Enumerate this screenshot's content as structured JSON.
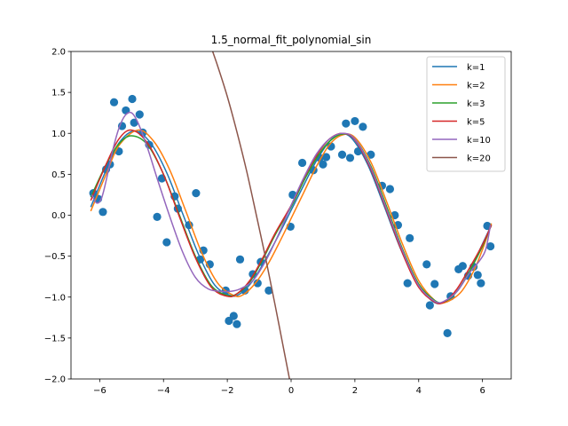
{
  "chart_data": {
    "type": "line",
    "title": "1.5_normal_fit_polynomial_sin",
    "xlabel": "",
    "ylabel": "",
    "xlim": [
      -6.9,
      6.9
    ],
    "ylim": [
      -2.0,
      2.0
    ],
    "x_ticks": [
      -6,
      -4,
      -2,
      0,
      2,
      4,
      6
    ],
    "x_tick_labels": [
      "−6",
      "−4",
      "−2",
      "0",
      "2",
      "4",
      "6"
    ],
    "y_ticks": [
      -2.0,
      -1.5,
      -1.0,
      -0.5,
      0.0,
      0.5,
      1.0,
      1.5,
      2.0
    ],
    "y_tick_labels": [
      "−2.0",
      "−1.5",
      "−1.0",
      "−0.5",
      "0.0",
      "0.5",
      "1.0",
      "1.5",
      "2.0"
    ],
    "grid": false,
    "legend_position": "top-right",
    "scatter": {
      "color": "#1f77b4",
      "points": [
        [
          -6.2,
          0.27
        ],
        [
          -6.05,
          0.2
        ],
        [
          -5.9,
          0.04
        ],
        [
          -5.8,
          0.56
        ],
        [
          -5.68,
          0.62
        ],
        [
          -5.55,
          1.38
        ],
        [
          -5.4,
          0.78
        ],
        [
          -5.3,
          1.09
        ],
        [
          -5.18,
          1.28
        ],
        [
          -4.98,
          1.42
        ],
        [
          -4.92,
          1.13
        ],
        [
          -4.75,
          1.23
        ],
        [
          -4.65,
          1.01
        ],
        [
          -4.45,
          0.86
        ],
        [
          -4.2,
          -0.02
        ],
        [
          -4.05,
          0.45
        ],
        [
          -3.9,
          -0.33
        ],
        [
          -3.65,
          0.23
        ],
        [
          -3.55,
          0.08
        ],
        [
          -3.2,
          -0.12
        ],
        [
          -2.98,
          0.27
        ],
        [
          -2.85,
          -0.54
        ],
        [
          -2.75,
          -0.43
        ],
        [
          -2.55,
          -0.6
        ],
        [
          -2.05,
          -0.92
        ],
        [
          -1.95,
          -1.29
        ],
        [
          -1.8,
          -1.23
        ],
        [
          -1.7,
          -1.33
        ],
        [
          -1.6,
          -0.54
        ],
        [
          -1.45,
          -0.92
        ],
        [
          -1.2,
          -0.72
        ],
        [
          -1.05,
          -0.83
        ],
        [
          -0.95,
          -0.57
        ],
        [
          -0.7,
          -0.92
        ],
        [
          -0.02,
          -0.14
        ],
        [
          0.05,
          0.25
        ],
        [
          0.35,
          0.64
        ],
        [
          0.7,
          0.55
        ],
        [
          0.9,
          0.7
        ],
        [
          1.0,
          0.62
        ],
        [
          1.1,
          0.71
        ],
        [
          1.25,
          0.84
        ],
        [
          1.6,
          0.74
        ],
        [
          1.72,
          1.12
        ],
        [
          1.85,
          0.7
        ],
        [
          2.0,
          1.15
        ],
        [
          2.1,
          0.78
        ],
        [
          2.25,
          1.08
        ],
        [
          2.5,
          0.74
        ],
        [
          2.85,
          0.36
        ],
        [
          3.1,
          0.32
        ],
        [
          3.25,
          0.0
        ],
        [
          3.35,
          -0.12
        ],
        [
          3.65,
          -0.83
        ],
        [
          3.72,
          -0.28
        ],
        [
          4.25,
          -0.6
        ],
        [
          4.35,
          -1.1
        ],
        [
          4.5,
          -0.84
        ],
        [
          4.9,
          -1.44
        ],
        [
          5.0,
          -0.99
        ],
        [
          5.25,
          -0.66
        ],
        [
          5.38,
          -0.62
        ],
        [
          5.55,
          -0.74
        ],
        [
          5.72,
          -0.63
        ],
        [
          5.85,
          -0.73
        ],
        [
          5.95,
          -0.83
        ],
        [
          6.15,
          -0.13
        ],
        [
          6.25,
          -0.38
        ]
      ]
    },
    "series": [
      {
        "name": "k=1",
        "color": "#1f77b4",
        "x": [
          -6.28,
          -5.8,
          -5.4,
          -4.9,
          -4.4,
          -3.9,
          -3.4,
          -2.9,
          -2.4,
          -1.9,
          -1.6,
          -1.2,
          -0.8,
          -0.4,
          0,
          0.4,
          0.8,
          1.2,
          1.55,
          1.9,
          2.4,
          2.9,
          3.4,
          3.9,
          4.4,
          4.75,
          5.2,
          5.6,
          6.0,
          6.28
        ],
        "y": [
          0.1,
          0.55,
          0.88,
          1.03,
          0.88,
          0.52,
          0.02,
          -0.48,
          -0.85,
          -0.98,
          -0.96,
          -0.8,
          -0.54,
          -0.25,
          0.06,
          0.37,
          0.67,
          0.9,
          0.99,
          0.94,
          0.62,
          0.13,
          -0.38,
          -0.8,
          -1.04,
          -1.07,
          -0.93,
          -0.68,
          -0.35,
          -0.12
        ]
      },
      {
        "name": "k=2",
        "color": "#ff7f0e",
        "x": [
          -6.28,
          -5.8,
          -5.4,
          -4.8,
          -4.3,
          -3.8,
          -3.3,
          -2.8,
          -2.3,
          -1.8,
          -1.5,
          -1.1,
          -0.7,
          -0.3,
          0,
          0.4,
          0.8,
          1.2,
          1.6,
          2.0,
          2.5,
          3.0,
          3.5,
          4.0,
          4.5,
          4.8,
          5.3,
          5.7,
          6.0,
          6.28
        ],
        "y": [
          0.05,
          0.5,
          0.85,
          1.04,
          0.9,
          0.55,
          0.05,
          -0.46,
          -0.83,
          -0.98,
          -0.97,
          -0.82,
          -0.58,
          -0.28,
          -0.04,
          0.28,
          0.6,
          0.86,
          0.98,
          0.95,
          0.65,
          0.16,
          -0.36,
          -0.8,
          -1.04,
          -1.07,
          -0.95,
          -0.7,
          -0.42,
          -0.1
        ]
      },
      {
        "name": "k=3",
        "color": "#2ca02c",
        "x": [
          -6.28,
          -5.8,
          -5.4,
          -5.0,
          -4.5,
          -4.0,
          -3.5,
          -3.0,
          -2.5,
          -2.0,
          -1.7,
          -1.3,
          -0.9,
          -0.5,
          0,
          0.4,
          0.8,
          1.2,
          1.6,
          2.0,
          2.5,
          3.0,
          3.5,
          4.0,
          4.5,
          4.8,
          5.2,
          5.6,
          6.0,
          6.28
        ],
        "y": [
          0.22,
          0.62,
          0.87,
          0.97,
          0.86,
          0.5,
          0.0,
          -0.5,
          -0.86,
          -0.98,
          -0.96,
          -0.82,
          -0.55,
          -0.24,
          0.1,
          0.42,
          0.7,
          0.9,
          0.99,
          0.93,
          0.6,
          0.1,
          -0.42,
          -0.84,
          -1.04,
          -1.06,
          -0.93,
          -0.68,
          -0.38,
          -0.12
        ]
      },
      {
        "name": "k=5",
        "color": "#d62728",
        "x": [
          -6.28,
          -5.8,
          -5.4,
          -5.0,
          -4.5,
          -4.0,
          -3.5,
          -3.0,
          -2.5,
          -2.0,
          -1.7,
          -1.3,
          -0.9,
          -0.5,
          0,
          0.4,
          0.8,
          1.2,
          1.6,
          2.0,
          2.5,
          3.0,
          3.5,
          4.0,
          4.5,
          4.8,
          5.2,
          5.6,
          6.0,
          6.28
        ],
        "y": [
          0.18,
          0.62,
          0.93,
          1.04,
          0.88,
          0.5,
          -0.02,
          -0.52,
          -0.88,
          -0.99,
          -0.96,
          -0.8,
          -0.53,
          -0.22,
          0.12,
          0.45,
          0.73,
          0.93,
          1.0,
          0.92,
          0.56,
          0.05,
          -0.47,
          -0.88,
          -1.06,
          -1.06,
          -0.9,
          -0.64,
          -0.36,
          -0.12
        ]
      },
      {
        "name": "k=10",
        "color": "#9467bd",
        "x": [
          -6.25,
          -6.1,
          -5.95,
          -5.8,
          -5.6,
          -5.4,
          -5.2,
          -5.0,
          -4.8,
          -4.5,
          -4.2,
          -3.8,
          -3.4,
          -3.0,
          -2.6,
          -2.2,
          -1.9,
          -1.6,
          -1.2,
          -0.8,
          -0.4,
          0,
          0.4,
          0.8,
          1.2,
          1.6,
          2.0,
          2.5,
          3.0,
          3.5,
          4.0,
          4.5,
          4.8,
          5.2,
          5.6,
          5.9,
          6.1,
          6.25
        ],
        "y": [
          0.25,
          0.15,
          0.2,
          0.42,
          0.78,
          1.06,
          1.22,
          1.25,
          1.13,
          0.82,
          0.45,
          -0.02,
          -0.45,
          -0.76,
          -0.9,
          -0.93,
          -0.93,
          -0.9,
          -0.8,
          -0.56,
          -0.24,
          0.12,
          0.46,
          0.75,
          0.93,
          1.0,
          0.93,
          0.58,
          0.07,
          -0.44,
          -0.86,
          -1.05,
          -1.05,
          -0.93,
          -0.7,
          -0.56,
          -0.42,
          -0.12
        ]
      },
      {
        "name": "k=20",
        "color": "#8c564b",
        "x": [
          -2.55,
          -2.3,
          -2.0,
          -1.7,
          -1.4,
          -1.1,
          -0.8,
          -0.5,
          -0.2,
          0.0
        ],
        "y": [
          2.1,
          1.82,
          1.45,
          1.02,
          0.55,
          0.02,
          -0.52,
          -1.1,
          -1.7,
          -2.1
        ]
      }
    ]
  }
}
